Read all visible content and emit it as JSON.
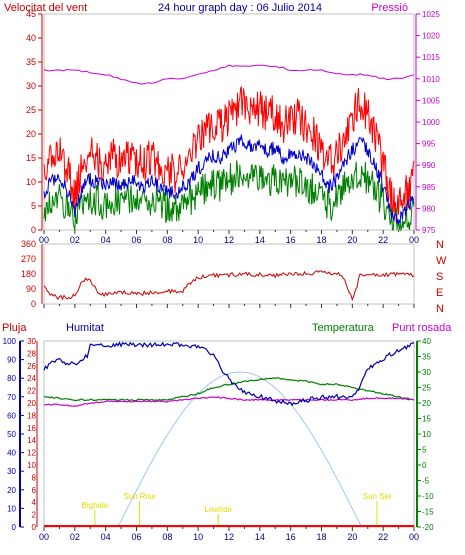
{
  "header": {
    "wind_speed_label": "Velocitat del vent",
    "graph_title": "24 hour graph day : 06 Julio 2014",
    "pressure_label": "Pressió"
  },
  "legend_bottom": {
    "rain": "Pluja",
    "humidity": "Humitat",
    "temperature": "Temperatura",
    "dewpoint": "Punt rosada"
  },
  "colors": {
    "wind_gust": "#ff0000",
    "wind_avg": "#0000cc",
    "wind_min": "#008000",
    "pressure": "#cc00cc",
    "direction": "#cc0000",
    "humidity": "#0000aa",
    "temperature": "#008000",
    "dewpoint": "#cc00cc",
    "solar": "#a0c8f0",
    "tide_text": "#e0e000",
    "rain": "#ff0000",
    "frame": "#c0c0c0"
  },
  "x_ticks": [
    "00",
    "02",
    "04",
    "06",
    "08",
    "10",
    "12",
    "14",
    "16",
    "18",
    "20",
    "22",
    "00"
  ],
  "chart_data": [
    {
      "type": "line",
      "title": "24 hour graph day : 06 Julio 2014",
      "series": [
        {
          "name": "Velocitat del vent",
          "x": [
            0,
            0.5,
            1,
            1.5,
            2,
            2.5,
            3,
            3.5,
            4,
            4.5,
            5,
            5.5,
            6,
            6.5,
            7,
            7.5,
            8,
            8.5,
            9,
            9.5,
            10,
            10.5,
            11,
            11.5,
            12,
            12.5,
            13,
            13.5,
            14,
            14.5,
            15,
            15.5,
            16,
            16.5,
            17,
            17.5,
            18,
            18.5,
            19,
            19.5,
            20,
            20.5,
            21,
            21.5,
            22,
            22.5,
            23,
            23.5,
            24
          ],
          "values": [
            10,
            14,
            15,
            11,
            5,
            12,
            14,
            13,
            12,
            14,
            12,
            14,
            13,
            12,
            14,
            12,
            11,
            10,
            12,
            14,
            17,
            19,
            21,
            20,
            22,
            24,
            25,
            23,
            24,
            22,
            23,
            20,
            21,
            22,
            20,
            18,
            16,
            12,
            14,
            19,
            22,
            25,
            22,
            18,
            12,
            5,
            3,
            6,
            9
          ]
        },
        {
          "name": "Pressió",
          "x": [
            0,
            2,
            4,
            6,
            7,
            8,
            9,
            10,
            11,
            12,
            13,
            14,
            15,
            16,
            17,
            18,
            19,
            20,
            21,
            22,
            23,
            24
          ],
          "values": [
            1012,
            1012,
            1011,
            1009,
            1009,
            1010,
            1010,
            1011,
            1012,
            1013,
            1013,
            1013,
            1013,
            1012,
            1012,
            1012,
            1011,
            1011,
            1011,
            1010,
            1010,
            1011
          ]
        }
      ],
      "ylim_left": [
        0,
        45
      ],
      "ylim_right": [
        975,
        1025
      ]
    },
    {
      "type": "line",
      "series": [
        {
          "name": "direction",
          "x": [
            0,
            0.3,
            0.8,
            1.5,
            2,
            2.5,
            3,
            3.5,
            4,
            5,
            6,
            7,
            8,
            9,
            9.5,
            10,
            11,
            12,
            13,
            14,
            15,
            16,
            17,
            18,
            19,
            19.5,
            20,
            20.5,
            21,
            22,
            23,
            24
          ],
          "values": [
            120,
            70,
            40,
            40,
            50,
            140,
            150,
            60,
            60,
            70,
            60,
            70,
            75,
            80,
            130,
            160,
            170,
            175,
            180,
            175,
            170,
            180,
            185,
            190,
            185,
            150,
            20,
            170,
            180,
            175,
            180,
            170
          ]
        }
      ],
      "ylim": [
        0,
        360
      ],
      "y_ticks": [
        "360",
        "270",
        "180",
        "90",
        "0"
      ],
      "right_labels": [
        "N",
        "W",
        "S",
        "E",
        "N"
      ]
    },
    {
      "type": "line",
      "series": [
        {
          "name": "Humitat",
          "x": [
            0,
            0.5,
            1,
            1.5,
            2,
            2.5,
            2.8,
            3,
            4,
            5,
            6,
            7,
            8,
            9,
            10,
            10.5,
            11,
            11.5,
            12,
            12.5,
            13,
            14,
            15,
            16,
            17,
            18,
            19,
            20,
            20.5,
            21,
            22,
            22.5,
            23,
            23.5,
            24
          ],
          "values": [
            85,
            88,
            90,
            87,
            88,
            90,
            92,
            98,
            98,
            98,
            98,
            98,
            98,
            98,
            97,
            95,
            92,
            85,
            80,
            75,
            72,
            70,
            68,
            66,
            68,
            70,
            70,
            70,
            75,
            85,
            90,
            93,
            95,
            97,
            98
          ]
        },
        {
          "name": "Temperatura",
          "x": [
            0,
            2,
            4,
            6,
            8,
            9,
            10,
            11,
            12,
            13,
            14,
            15,
            16,
            17,
            18,
            19,
            20,
            21,
            22,
            23,
            24
          ],
          "values": [
            22,
            21,
            21,
            21,
            21,
            22,
            23,
            25,
            26,
            27,
            27.5,
            28,
            27.5,
            27,
            26,
            26,
            25,
            24,
            23,
            22,
            21
          ]
        },
        {
          "name": "Punt rosada",
          "x": [
            0,
            1,
            2,
            3,
            4,
            6,
            8,
            9,
            10,
            11,
            12,
            13,
            14,
            15,
            16,
            17,
            18,
            19,
            20,
            21,
            22,
            23,
            24
          ],
          "values": [
            19.5,
            19.5,
            19,
            20,
            20.5,
            20.5,
            20.5,
            21,
            21.5,
            22,
            21.5,
            21,
            21,
            21,
            21,
            21,
            21,
            21,
            21,
            21.5,
            21.5,
            21.5,
            21
          ]
        }
      ],
      "ylim_humidity": [
        0,
        100
      ],
      "ylim_rain": [
        0,
        30
      ],
      "ylim_temperature": [
        -20,
        40
      ],
      "humidity_ticks": [
        "100",
        "90",
        "80",
        "70",
        "60",
        "50",
        "40",
        "30",
        "20",
        "10",
        "0"
      ],
      "rain_ticks": [
        "30",
        "28",
        "26",
        "24",
        "22",
        "20",
        "18",
        "16",
        "14",
        "12",
        "10",
        "8",
        "6",
        "4",
        "2",
        "0"
      ],
      "temp_ticks": [
        "40",
        "35",
        "30",
        "25",
        "20",
        "15",
        "10",
        "5",
        "0",
        "-5",
        "-10",
        "-15",
        "-20"
      ],
      "annotations": [
        "Bighide",
        "Sun Rise",
        "Lowtide",
        "Sun Set"
      ]
    }
  ]
}
